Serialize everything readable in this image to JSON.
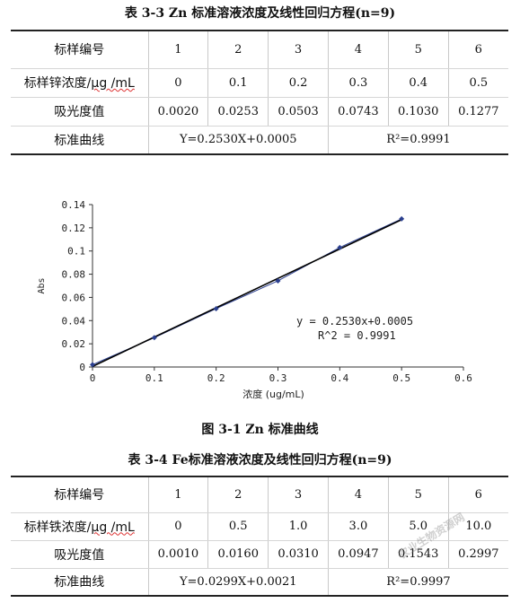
{
  "table1": {
    "caption": "表 3-3 Zn 标准溶液浓度及线性回归方程(n=9)",
    "label_id": "标样编号",
    "ids": [
      "1",
      "2",
      "3",
      "4",
      "5",
      "6"
    ],
    "label_conc_pre": "标样锌浓度/",
    "label_conc_unit": "μg /mL",
    "conc": [
      "0",
      "0.1",
      "0.2",
      "0.3",
      "0.4",
      "0.5"
    ],
    "label_abs": "吸光度值",
    "abs": [
      "0.0020",
      "0.0253",
      "0.0503",
      "0.0743",
      "0.1030",
      "0.1277"
    ],
    "label_curve": "标准曲线",
    "equation": "Y=0.2530X+0.0005",
    "r2": "R²=0.9991"
  },
  "figure": {
    "caption": "图 3-1 Zn 标准曲线"
  },
  "chart_data": {
    "type": "scatter",
    "x": [
      0,
      0.1,
      0.2,
      0.3,
      0.4,
      0.5
    ],
    "y": [
      0.002,
      0.0253,
      0.0503,
      0.0743,
      0.103,
      0.1277
    ],
    "trendline": {
      "slope": 0.253,
      "intercept": 0.0005
    },
    "xlabel": "浓度 (ug/mL)",
    "ylabel": "Abs",
    "xlim": [
      0,
      0.6
    ],
    "ylim": [
      0,
      0.14
    ],
    "xticks": [
      "0",
      "0.1",
      "0.2",
      "0.3",
      "0.4",
      "0.5",
      "0.6"
    ],
    "yticks": [
      "0",
      "0.02",
      "0.04",
      "0.06",
      "0.08",
      "0.1",
      "0.12",
      "0.14"
    ],
    "annotation_eq": "y = 0.2530x+0.0005",
    "annotation_r2": "R^2 = 0.9991",
    "grid": false,
    "series_color": "#2b3f8f"
  },
  "table2": {
    "caption": "表 3-4 Fe标准溶液浓度及线性回归方程(n=9)",
    "label_id": "标样编号",
    "ids": [
      "1",
      "2",
      "3",
      "4",
      "5",
      "6"
    ],
    "label_conc_pre": "标样铁浓度/",
    "label_conc_unit": "μg /mL",
    "conc": [
      "0",
      "0.5",
      "1.0",
      "3.0",
      "5.0",
      "10.0"
    ],
    "label_abs": "吸光度值",
    "abs": [
      "0.0010",
      "0.0160",
      "0.0310",
      "0.0947",
      "0.1543",
      "0.2997"
    ],
    "label_curve": "标准曲线",
    "equation": "Y=0.0299X+0.0021",
    "r2": "R²=0.9997"
  },
  "watermark": "农业生物资源网"
}
